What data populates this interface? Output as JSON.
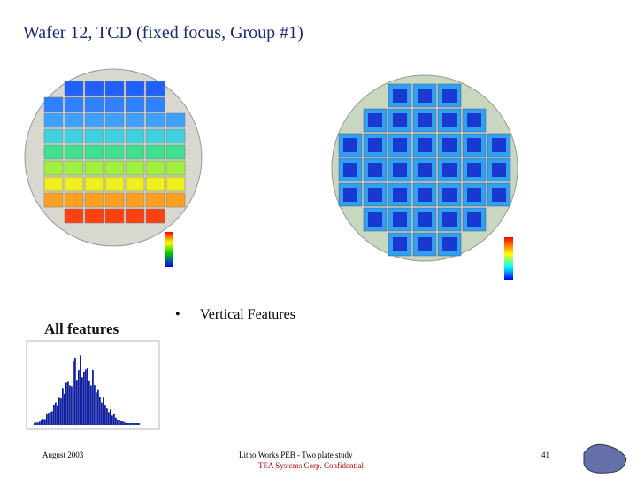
{
  "header": {
    "title": "Wafer 12, TCD (fixed focus, Group #1)"
  },
  "left": {
    "caption": "All features"
  },
  "right": {
    "bullet": "•",
    "caption": "Vertical Features"
  },
  "footer": {
    "date": "August 2003",
    "study": "Litho.Works PEB - Two plate study",
    "confidential": "TEA Systems Corp. Confidential",
    "page": "41"
  }
}
